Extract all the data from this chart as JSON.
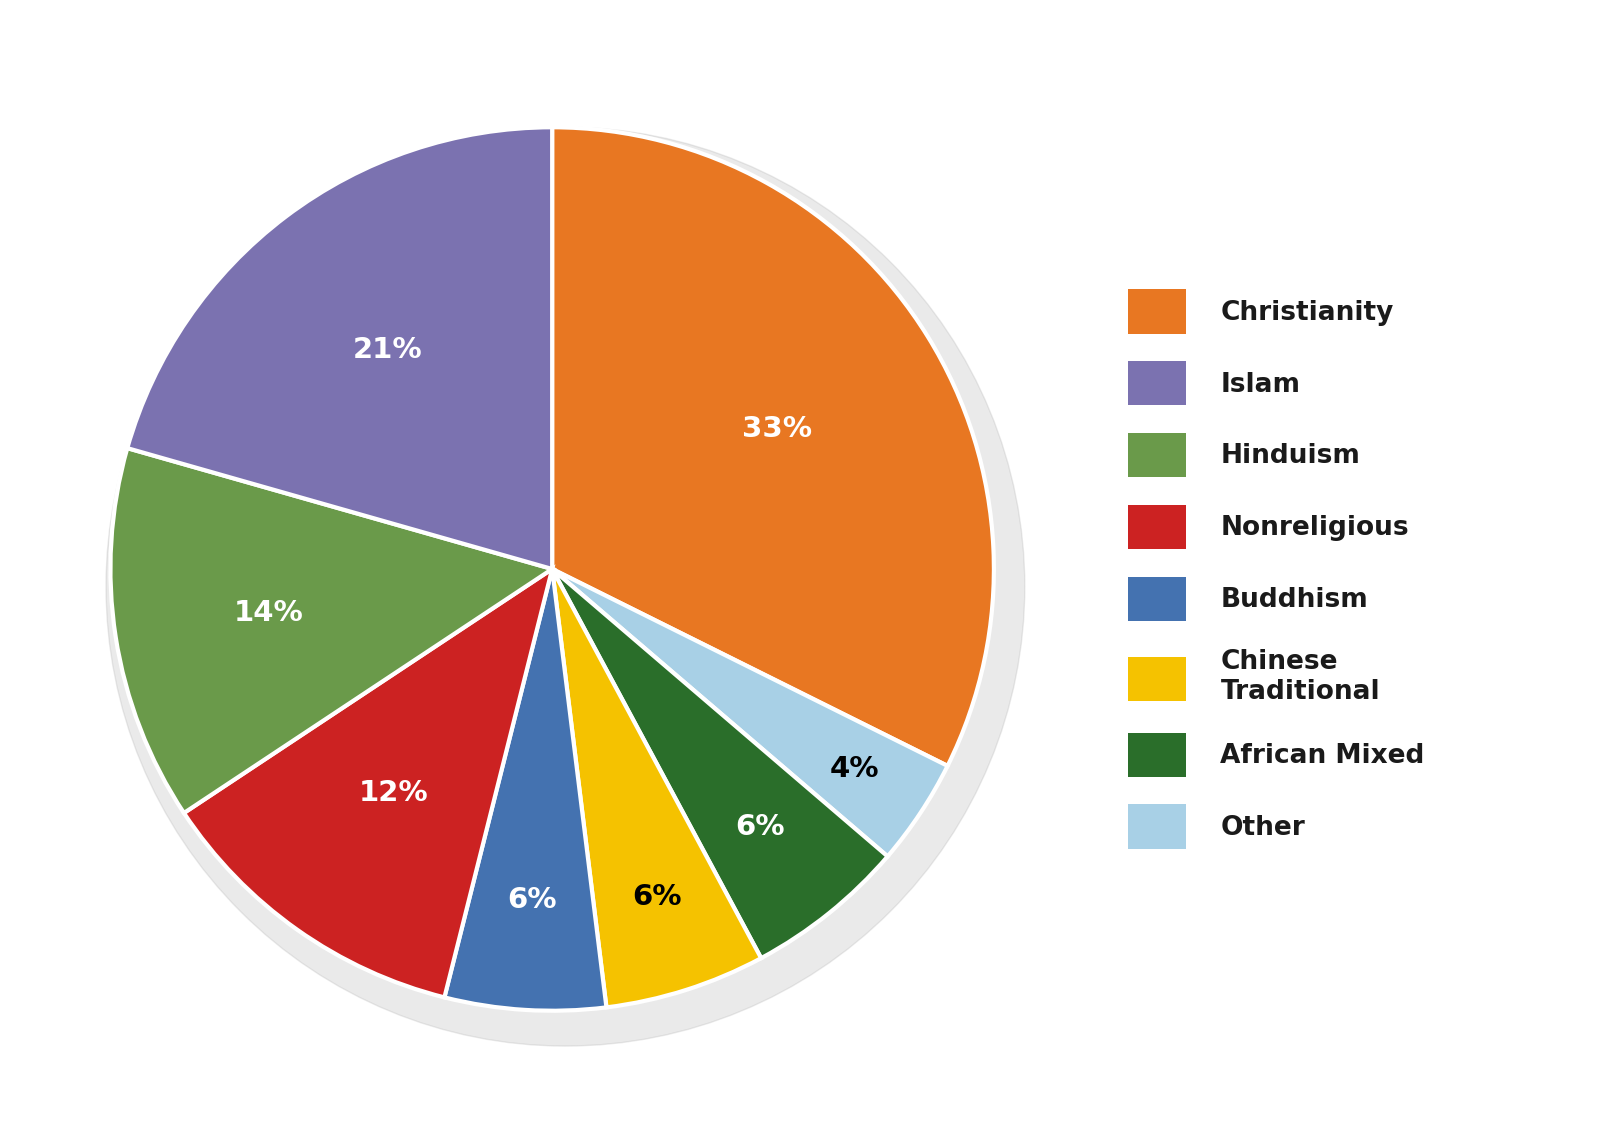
{
  "plot_order": [
    "Christianity",
    "Other",
    "African Mixed",
    "Chinese Traditional",
    "Buddhism",
    "Nonreligious",
    "Hinduism",
    "Islam"
  ],
  "plot_values": [
    33,
    4,
    6,
    6,
    6,
    12,
    14,
    21
  ],
  "plot_colors": [
    "#E87722",
    "#A8D0E6",
    "#2A6E2A",
    "#F5C200",
    "#4472B0",
    "#CC2222",
    "#6A9A4A",
    "#7B72B0"
  ],
  "plot_label_colors": [
    "white",
    "black",
    "white",
    "black",
    "white",
    "white",
    "white",
    "white"
  ],
  "legend_labels": [
    "Christianity",
    "Islam",
    "Hinduism",
    "Nonreligious",
    "Buddhism",
    "Chinese\nTraditional",
    "African Mixed",
    "Other"
  ],
  "legend_colors": [
    "#E87722",
    "#7B72B0",
    "#6A9A4A",
    "#CC2222",
    "#4472B0",
    "#F5C200",
    "#2A6E2A",
    "#A8D0E6"
  ],
  "background_color": "#ffffff",
  "wedge_edge_color": "white",
  "legend_fontsize": 19,
  "label_fontsize": 21
}
